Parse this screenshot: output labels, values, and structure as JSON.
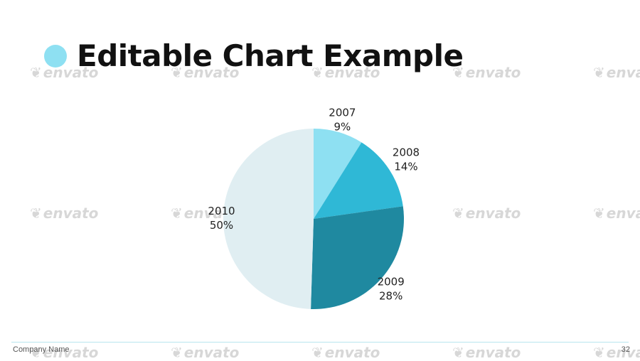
{
  "slide": {
    "title": "Editable Chart Example",
    "company": "Company Name",
    "page_number": "32",
    "accent_color": "#8ee0f2"
  },
  "watermark": {
    "text": "envato",
    "icon": "leaf-icon"
  },
  "chart_data": {
    "type": "pie",
    "title": "",
    "start_angle": "12 o'clock, clockwise",
    "slices": [
      {
        "label": "2007",
        "value": 9,
        "percent_label": "9%",
        "color": "#8ee0f2"
      },
      {
        "label": "2008",
        "value": 14,
        "percent_label": "14%",
        "color": "#2fb8d6"
      },
      {
        "label": "2009",
        "value": 28,
        "percent_label": "28%",
        "color": "#1f89a0"
      },
      {
        "label": "2010",
        "value": 50,
        "percent_label": "50%",
        "color": "#e0eef2"
      }
    ]
  }
}
